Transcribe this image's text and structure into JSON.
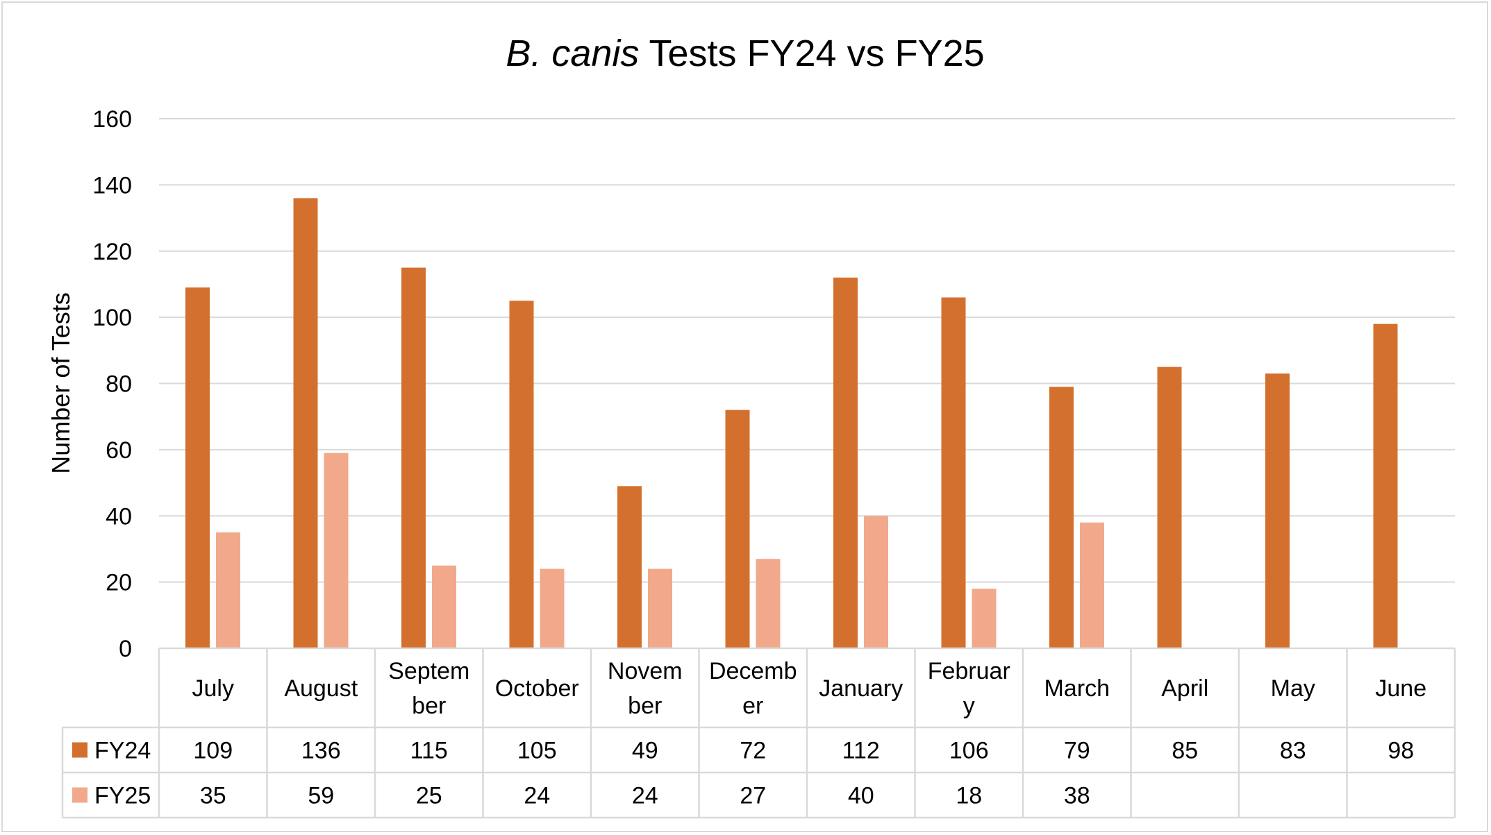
{
  "chart_data": {
    "type": "bar",
    "title_italic": "B. canis",
    "title_rest": " Tests FY24 vs FY25",
    "ylabel": "Number of Tests",
    "xlabel": "",
    "ylim": [
      0,
      160
    ],
    "yticks": [
      0,
      20,
      40,
      60,
      80,
      100,
      120,
      140,
      160
    ],
    "grid": true,
    "legend": "data-table",
    "categories": [
      "July",
      "August",
      "September",
      "October",
      "November",
      "December",
      "January",
      "February",
      "March",
      "April",
      "May",
      "June"
    ],
    "category_lines": [
      [
        "July"
      ],
      [
        "August"
      ],
      [
        "Septem",
        "ber"
      ],
      [
        "October"
      ],
      [
        "Novem",
        "ber"
      ],
      [
        "Decemb",
        "er"
      ],
      [
        "January"
      ],
      [
        "Februar",
        "y"
      ],
      [
        "March"
      ],
      [
        "April"
      ],
      [
        "May"
      ],
      [
        "June"
      ]
    ],
    "series": [
      {
        "name": "FY24",
        "color": "#d4702e",
        "values": [
          109,
          136,
          115,
          105,
          49,
          72,
          112,
          106,
          79,
          85,
          83,
          98
        ]
      },
      {
        "name": "FY25",
        "color": "#f2a98b",
        "values": [
          35,
          59,
          25,
          24,
          24,
          27,
          40,
          18,
          38,
          null,
          null,
          null
        ]
      }
    ]
  }
}
